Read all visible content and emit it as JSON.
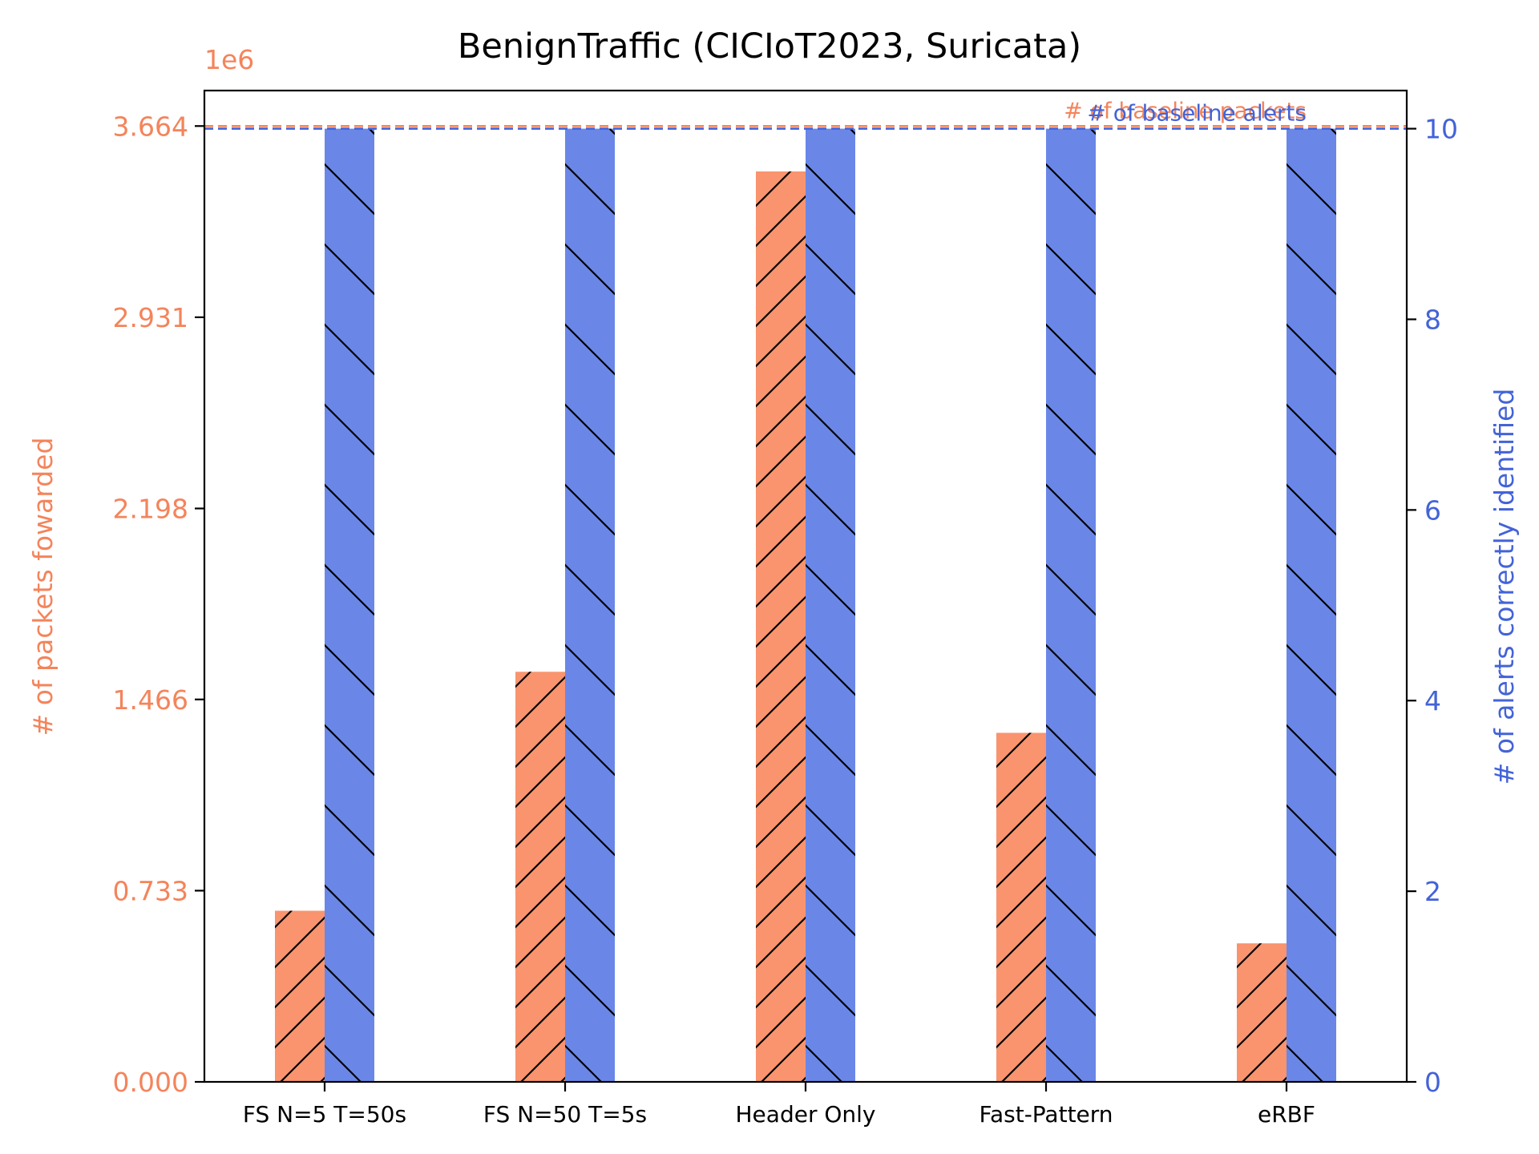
{
  "colors": {
    "packets": "#f9946e",
    "packets_text": "#f4845b",
    "alerts": "#6a87e8",
    "alerts_text": "#4363d8",
    "hatch": "#000000"
  },
  "chart_data": {
    "type": "bar",
    "title": "BenignTraffic (CICIoT2023, Suricata)",
    "categories": [
      "FS N=5 T=50s",
      "FS N=50 T=5s",
      "Header Only",
      "Fast-Pattern",
      "eRBF"
    ],
    "series": [
      {
        "name": "# of packets fowarded",
        "axis": "left",
        "values": [
          656000,
          1572000,
          3490000,
          1338000,
          531000
        ],
        "hatch": "forward-diagonal"
      },
      {
        "name": "# of alerts correctly identified",
        "axis": "right",
        "values": [
          10,
          10,
          10,
          10,
          10
        ],
        "hatch": "back-diagonal"
      }
    ],
    "left_axis": {
      "label": "# of packets fowarded",
      "exponent_label": "1e6",
      "ylim": [
        0,
        3.8
      ],
      "ticks": [
        0,
        0.733,
        1.466,
        2.198,
        2.931,
        3.664
      ],
      "tick_labels": [
        "0.000",
        "0.733",
        "1.466",
        "2.198",
        "2.931",
        "3.664"
      ]
    },
    "right_axis": {
      "label": "# of alerts correctly identified",
      "ylim": [
        0,
        10.4
      ],
      "ticks": [
        0,
        2,
        4,
        6,
        8,
        10
      ],
      "tick_labels": [
        "0",
        "2",
        "4",
        "6",
        "8",
        "10"
      ]
    },
    "reference_lines": [
      {
        "label": "# of baseline packets",
        "axis": "left",
        "value": 3.664,
        "style": "dashed"
      },
      {
        "label": "# of baseline alerts",
        "axis": "right",
        "value": 10,
        "style": "dashed"
      }
    ],
    "grid": false
  }
}
